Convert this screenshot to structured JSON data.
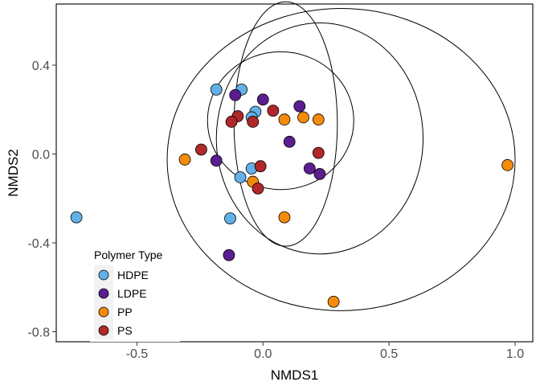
{
  "chart_data": {
    "type": "scatter",
    "title": "",
    "xlabel": "NMDS1",
    "ylabel": "NMDS2",
    "xlim": [
      -0.82,
      1.07
    ],
    "ylim": [
      -0.845,
      0.675
    ],
    "xticks": [
      {
        "value": -0.5,
        "label": "-0.5"
      },
      {
        "value": 0.0,
        "label": "0.0"
      },
      {
        "value": 0.5,
        "label": "0.5"
      },
      {
        "value": 1.0,
        "label": "1.0"
      }
    ],
    "yticks": [
      {
        "value": 0.4,
        "label": "0.4"
      },
      {
        "value": 0.0,
        "label": "0.0"
      },
      {
        "value": -0.4,
        "label": "-0.4"
      },
      {
        "value": -0.8,
        "label": "-0.8"
      }
    ],
    "grid": false,
    "legend": {
      "title": "Polymer Type",
      "position": "bottom-left (inside)"
    },
    "series": [
      {
        "name": "HDPE",
        "color": "#63B0E8",
        "points": [
          {
            "x": -0.185,
            "y": 0.29
          },
          {
            "x": -0.085,
            "y": 0.29
          },
          {
            "x": -0.03,
            "y": 0.19
          },
          {
            "x": -0.045,
            "y": 0.165
          },
          {
            "x": -0.045,
            "y": -0.065
          },
          {
            "x": -0.09,
            "y": -0.105
          },
          {
            "x": -0.13,
            "y": -0.29
          },
          {
            "x": -0.74,
            "y": -0.285
          }
        ]
      },
      {
        "name": "LDPE",
        "color": "#5B1E8F",
        "points": [
          {
            "x": -0.11,
            "y": 0.265
          },
          {
            "x": 0.0,
            "y": 0.245
          },
          {
            "x": 0.145,
            "y": 0.215
          },
          {
            "x": 0.105,
            "y": 0.055
          },
          {
            "x": -0.185,
            "y": -0.03
          },
          {
            "x": 0.185,
            "y": -0.065
          },
          {
            "x": 0.225,
            "y": -0.09
          },
          {
            "x": -0.135,
            "y": -0.455
          }
        ]
      },
      {
        "name": "PP",
        "color": "#F58B0A",
        "points": [
          {
            "x": 0.16,
            "y": 0.165
          },
          {
            "x": 0.22,
            "y": 0.155
          },
          {
            "x": 0.085,
            "y": 0.155
          },
          {
            "x": -0.31,
            "y": -0.025
          },
          {
            "x": -0.04,
            "y": -0.125
          },
          {
            "x": 0.085,
            "y": -0.285
          },
          {
            "x": 0.28,
            "y": -0.665
          },
          {
            "x": 0.97,
            "y": -0.05
          }
        ]
      },
      {
        "name": "PS",
        "color": "#B0282A",
        "points": [
          {
            "x": -0.1,
            "y": 0.17
          },
          {
            "x": -0.125,
            "y": 0.145
          },
          {
            "x": -0.04,
            "y": 0.145
          },
          {
            "x": 0.04,
            "y": 0.195
          },
          {
            "x": -0.245,
            "y": 0.02
          },
          {
            "x": 0.22,
            "y": 0.005
          },
          {
            "x": -0.01,
            "y": -0.055
          },
          {
            "x": -0.02,
            "y": -0.155
          }
        ]
      }
    ],
    "ellipses": [
      {
        "group": "all-1",
        "cx": 0.31,
        "cy": -0.025,
        "rx": 0.69,
        "ry": 0.68
      },
      {
        "group": "all-2",
        "cx": 0.07,
        "cy": 0.15,
        "rx": 0.29,
        "ry": 0.31
      },
      {
        "group": "all-3",
        "cx": 0.09,
        "cy": 0.135,
        "rx": 0.205,
        "ry": 0.55
      },
      {
        "group": "all-4",
        "cx": 0.225,
        "cy": 0.07,
        "rx": 0.41,
        "ry": 0.52
      }
    ]
  }
}
